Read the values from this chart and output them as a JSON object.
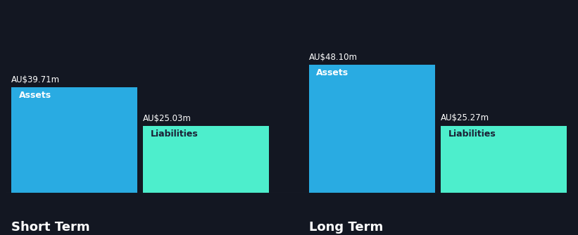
{
  "background_color": "#131722",
  "short_term": {
    "assets_value": 39.71,
    "liabilities_value": 25.03,
    "assets_label": "AU$39.71m",
    "liabilities_label": "AU$25.03m",
    "assets_color": "#29ABE2",
    "liabilities_color": "#4DEECC",
    "label": "Short Term"
  },
  "long_term": {
    "assets_value": 48.1,
    "liabilities_value": 25.27,
    "assets_label": "AU$48.10m",
    "liabilities_label": "AU$25.27m",
    "assets_color": "#29ABE2",
    "liabilities_color": "#4DEECC",
    "label": "Long Term"
  },
  "bar_inner_label_assets": "Assets",
  "bar_inner_label_liabilities": "Liabilities",
  "text_color_white": "#FFFFFF",
  "text_color_dark": "#1a2035",
  "axis_line_color": "#3a3f50",
  "inner_label_fontsize": 9,
  "section_label_fontsize": 13,
  "value_label_fontsize": 8.5
}
